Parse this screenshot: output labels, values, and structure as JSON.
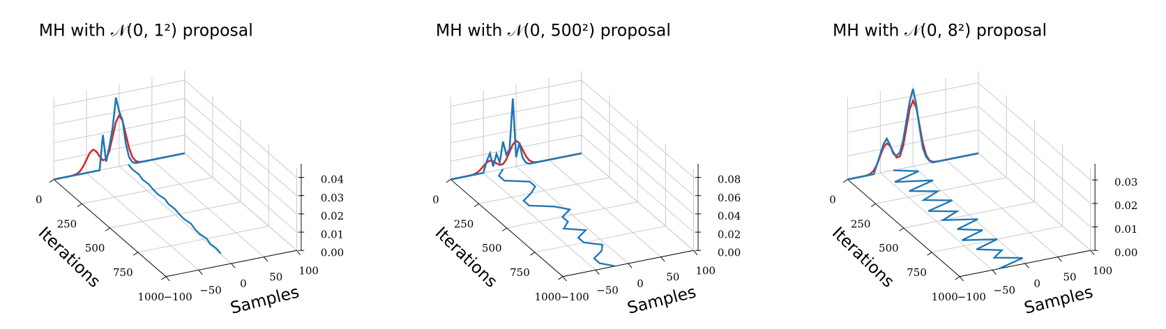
{
  "chart_data": [
    {
      "type": "line3d",
      "title": "MH with 𝒩(0, 1²) proposal",
      "xlabel": "Samples",
      "ylabel": "Iterations",
      "xlim": [
        -100,
        100
      ],
      "xticks": [
        {
          "value": -100,
          "label": "−100"
        },
        {
          "value": -50,
          "label": "−50"
        },
        0,
        50,
        100
      ],
      "ylim": [
        0,
        1000
      ],
      "yticks": [
        0,
        250,
        500,
        750,
        1000
      ],
      "zlim": [
        0,
        0.045
      ],
      "zticks": [
        {
          "value": 0,
          "label": "0.00"
        },
        {
          "value": 0.01,
          "label": "0.01"
        },
        {
          "value": 0.02,
          "label": "0.02"
        },
        {
          "value": 0.03,
          "label": "0.03"
        },
        {
          "value": 0.04,
          "label": "0.04"
        }
      ],
      "grid": true,
      "density_x": [
        -100,
        -95,
        -90,
        -85,
        -80,
        -75,
        -70,
        -65,
        -60,
        -55,
        -50,
        -45,
        -40,
        -35,
        -30,
        -25,
        -20,
        -15,
        -10,
        -5,
        0,
        5,
        10,
        15,
        20,
        25,
        30,
        35,
        40,
        45,
        50,
        55,
        60,
        65,
        70,
        75,
        80,
        85,
        90,
        95,
        100
      ],
      "series": [
        {
          "color": "#d62728",
          "values": [
            0,
            0,
            0,
            0,
            0,
            0,
            0.0001,
            0.0005,
            0.0016,
            0.0039,
            0.0073,
            0.0106,
            0.012,
            0.0107,
            0.0076,
            0.0051,
            0.0054,
            0.0096,
            0.0171,
            0.0247,
            0.028,
            0.0247,
            0.017,
            0.0091,
            0.0038,
            0.0012,
            0.0003,
            0.0001,
            0,
            0,
            0,
            0,
            0,
            0,
            0,
            0,
            0,
            0,
            0,
            0,
            0
          ]
        },
        {
          "color": "#1f77b4",
          "values": [
            0,
            0,
            0,
            0,
            0,
            0,
            0,
            0,
            0,
            0,
            0,
            0,
            0,
            0,
            0,
            0.019,
            0.004,
            0.012,
            0.022,
            0.038,
            0.03,
            0.025,
            0.012,
            0.004,
            0.001,
            0,
            0,
            0,
            0,
            0,
            0,
            0,
            0,
            0,
            0,
            0,
            0,
            0,
            0,
            0,
            0
          ]
        }
      ],
      "chain": {
        "color": "#1f77b4",
        "x": [
          0,
          50,
          100,
          150,
          200,
          250,
          300,
          350,
          400,
          450,
          500,
          550,
          600,
          650,
          700,
          750,
          800,
          850,
          900
        ],
        "values": [
          14,
          12,
          13,
          10,
          11,
          9,
          8,
          10,
          7,
          8,
          6,
          5,
          7,
          4,
          3,
          5,
          2,
          3,
          1
        ]
      }
    },
    {
      "type": "line3d",
      "title": "MH with 𝒩(0, 500²) proposal",
      "xlabel": "Samples",
      "ylabel": "Iterations",
      "xlim": [
        -100,
        100
      ],
      "xticks": [
        {
          "value": -100,
          "label": "−100"
        },
        {
          "value": -50,
          "label": "−50"
        },
        0,
        50,
        100
      ],
      "ylim": [
        0,
        1000
      ],
      "yticks": [
        0,
        250,
        500,
        750,
        1000
      ],
      "zlim": [
        0,
        0.09
      ],
      "zticks": [
        {
          "value": 0,
          "label": "0.00"
        },
        {
          "value": 0.02,
          "label": "0.02"
        },
        {
          "value": 0.04,
          "label": "0.04"
        },
        {
          "value": 0.06,
          "label": "0.06"
        },
        {
          "value": 0.08,
          "label": "0.08"
        }
      ],
      "grid": true,
      "density_x": [
        -100,
        -95,
        -90,
        -85,
        -80,
        -75,
        -70,
        -65,
        -60,
        -55,
        -50,
        -45,
        -40,
        -35,
        -30,
        -25,
        -20,
        -15,
        -10,
        -5,
        0,
        5,
        10,
        15,
        20,
        25,
        30,
        35,
        40,
        45,
        50,
        55,
        60,
        65,
        70,
        75,
        80,
        85,
        90,
        95,
        100
      ],
      "series": [
        {
          "color": "#d62728",
          "values": [
            0,
            0,
            0,
            0,
            0,
            0,
            0.0001,
            0.0005,
            0.0016,
            0.0039,
            0.0073,
            0.0106,
            0.012,
            0.0107,
            0.0076,
            0.0051,
            0.0054,
            0.0096,
            0.0171,
            0.0247,
            0.028,
            0.0247,
            0.017,
            0.0091,
            0.0038,
            0.0012,
            0.0003,
            0.0001,
            0,
            0,
            0,
            0,
            0,
            0,
            0,
            0,
            0,
            0,
            0,
            0,
            0
          ]
        },
        {
          "color": "#1f77b4",
          "values": [
            0,
            0,
            0,
            0,
            0,
            0,
            0,
            0,
            0,
            0,
            0,
            0.012,
            0.02,
            0.005,
            0.018,
            0.008,
            0.03,
            0.015,
            0.02,
            0.075,
            0.01,
            0.025,
            0.008,
            0.002,
            0,
            0,
            0,
            0,
            0,
            0,
            0,
            0,
            0,
            0,
            0,
            0,
            0,
            0,
            0,
            0,
            0
          ]
        }
      ],
      "chain": {
        "color": "#1f77b4",
        "x": [
          0,
          50,
          100,
          150,
          200,
          250,
          300,
          350,
          400,
          450,
          500,
          550,
          600,
          650,
          700,
          750,
          800,
          850,
          900,
          950,
          1000
        ],
        "values": [
          -20,
          -35,
          -35,
          -5,
          -5,
          -20,
          -40,
          -40,
          -10,
          5,
          -15,
          -15,
          -30,
          -5,
          -25,
          -25,
          -5,
          -15,
          -35,
          -35,
          -20
        ]
      }
    },
    {
      "type": "line3d",
      "title": "MH with 𝒩(0, 8²) proposal",
      "xlabel": "Samples",
      "ylabel": "Iterations",
      "xlim": [
        -100,
        100
      ],
      "xticks": [
        {
          "value": -100,
          "label": "−100"
        },
        {
          "value": -50,
          "label": "−50"
        },
        0,
        50,
        100
      ],
      "ylim": [
        0,
        1000
      ],
      "yticks": [
        0,
        250,
        500,
        750,
        1000
      ],
      "zlim": [
        0,
        0.035
      ],
      "zticks": [
        {
          "value": 0,
          "label": "0.00"
        },
        {
          "value": 0.01,
          "label": "0.01"
        },
        {
          "value": 0.02,
          "label": "0.02"
        },
        {
          "value": 0.03,
          "label": "0.03"
        }
      ],
      "grid": true,
      "density_x": [
        -100,
        -95,
        -90,
        -85,
        -80,
        -75,
        -70,
        -65,
        -60,
        -55,
        -50,
        -45,
        -40,
        -35,
        -30,
        -25,
        -20,
        -15,
        -10,
        -5,
        0,
        5,
        10,
        15,
        20,
        25,
        30,
        35,
        40,
        45,
        50,
        55,
        60,
        65,
        70,
        75,
        80,
        85,
        90,
        95,
        100
      ],
      "series": [
        {
          "color": "#d62728",
          "values": [
            0,
            0,
            0,
            0,
            0,
            0,
            0.0001,
            0.0005,
            0.0016,
            0.0039,
            0.0073,
            0.0106,
            0.012,
            0.0107,
            0.0076,
            0.0051,
            0.0054,
            0.0096,
            0.0171,
            0.0247,
            0.028,
            0.0247,
            0.017,
            0.0091,
            0.0038,
            0.0012,
            0.0003,
            0.0001,
            0,
            0,
            0,
            0,
            0,
            0,
            0,
            0,
            0,
            0,
            0,
            0,
            0
          ]
        },
        {
          "color": "#1f77b4",
          "values": [
            0,
            0,
            0,
            0,
            0,
            0,
            0,
            0,
            0,
            0.004,
            0.008,
            0.012,
            0.014,
            0.011,
            0.007,
            0.006,
            0.007,
            0.012,
            0.02,
            0.028,
            0.033,
            0.026,
            0.016,
            0.007,
            0.003,
            0.001,
            0,
            0,
            0,
            0,
            0,
            0,
            0,
            0,
            0,
            0,
            0,
            0,
            0,
            0,
            0
          ]
        }
      ],
      "chain": {
        "color": "#1f77b4",
        "x": [
          0,
          50,
          100,
          150,
          200,
          250,
          300,
          350,
          400,
          450,
          500,
          550,
          600,
          650,
          700,
          750,
          800,
          850,
          900,
          950,
          1000
        ],
        "values": [
          -30,
          0,
          -45,
          5,
          -40,
          -5,
          -35,
          0,
          -45,
          -10,
          -40,
          5,
          -35,
          -5,
          -45,
          0,
          -40,
          -10,
          -30,
          5,
          -40
        ]
      }
    }
  ]
}
